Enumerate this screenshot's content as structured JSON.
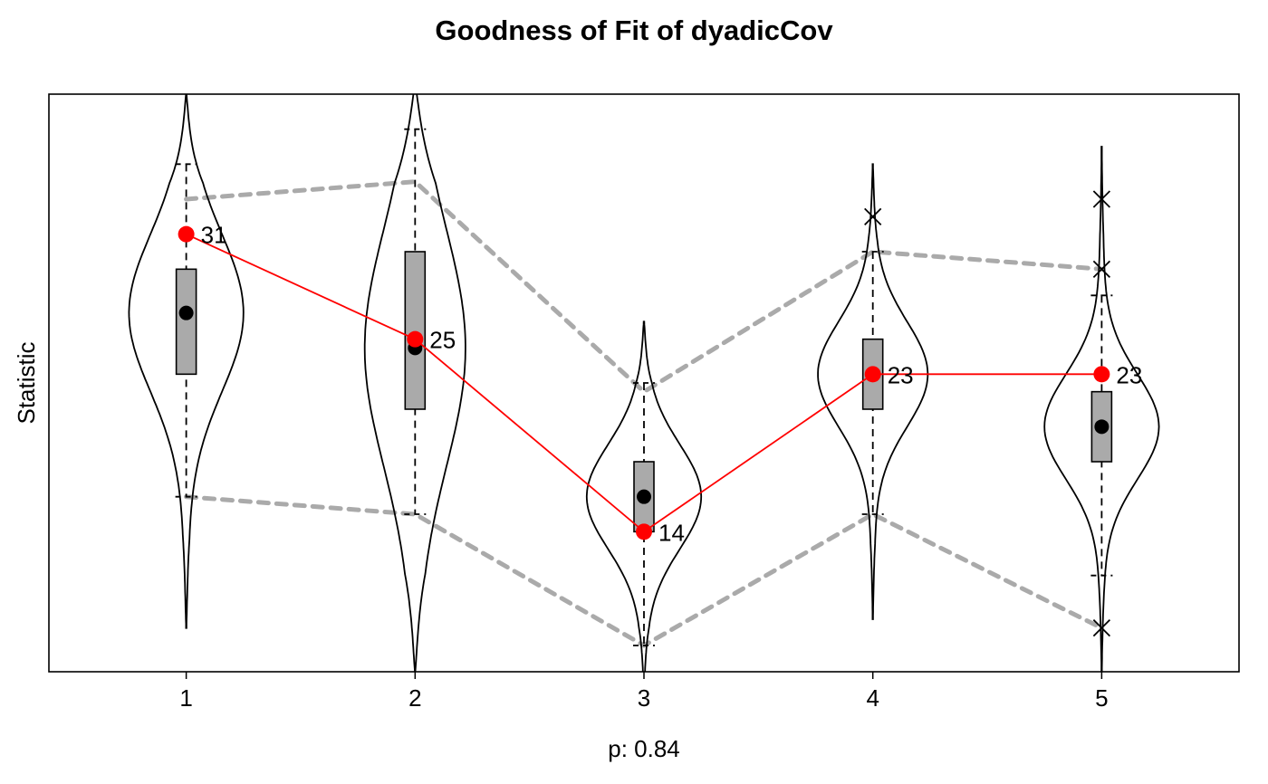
{
  "chart_data": {
    "type": "violin",
    "title": "Goodness of Fit of dyadicCov",
    "xlabel": "p: 0.84",
    "ylabel": "Statistic",
    "categories": [
      "1",
      "2",
      "3",
      "4",
      "5"
    ],
    "ylim": [
      6.0,
      39.0
    ],
    "colors": {
      "observed": "#ff0000",
      "box": "#aaaaaa",
      "band": "#aaaaaa",
      "violin": "#000000"
    },
    "grid": false,
    "observed": [
      {
        "x": "1",
        "value": 31,
        "label": "31"
      },
      {
        "x": "2",
        "value": 25,
        "label": "25"
      },
      {
        "x": "3",
        "value": 14,
        "label": "14"
      },
      {
        "x": "4",
        "value": 23,
        "label": "23"
      },
      {
        "x": "5",
        "value": 23,
        "label": "23"
      }
    ],
    "simulated": [
      {
        "x": "1",
        "median": 26.5,
        "q1": 23.0,
        "q3": 29.0,
        "whisker_low": 16.0,
        "whisker_high": 35.0,
        "min": 8.5,
        "max": 39.0,
        "outliers": []
      },
      {
        "x": "2",
        "median": 24.5,
        "q1": 21.0,
        "q3": 30.0,
        "whisker_low": 15.0,
        "whisker_high": 37.0,
        "min": 6.0,
        "max": 39.5,
        "outliers": []
      },
      {
        "x": "3",
        "median": 16.0,
        "q1": 14.0,
        "q3": 18.0,
        "whisker_low": 7.5,
        "whisker_high": 22.5,
        "min": 5.0,
        "max": 26.0,
        "outliers": []
      },
      {
        "x": "4",
        "median": 23.0,
        "q1": 21.0,
        "q3": 25.0,
        "whisker_low": 15.0,
        "whisker_high": 30.0,
        "min": 9.0,
        "max": 35.0,
        "outliers": [
          32.0
        ]
      },
      {
        "x": "5",
        "median": 20.0,
        "q1": 18.0,
        "q3": 22.0,
        "whisker_low": 11.5,
        "whisker_high": 27.5,
        "min": 6.0,
        "max": 36.0,
        "outliers": [
          33.0,
          29.0,
          8.5
        ]
      }
    ],
    "band_low": [
      16.0,
      15.0,
      7.5,
      15.0,
      8.5
    ],
    "band_high": [
      33.0,
      34.0,
      22.0,
      30.0,
      29.0
    ],
    "violin_width": [
      0.25,
      0.22,
      0.25,
      0.24,
      0.25
    ]
  }
}
